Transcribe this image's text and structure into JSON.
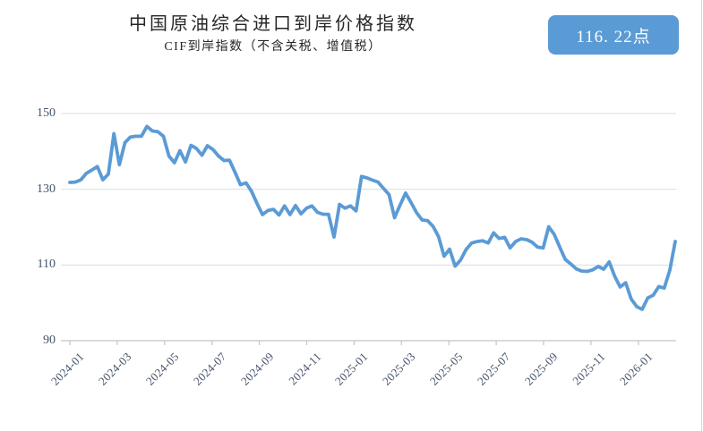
{
  "header": {
    "title": "中国原油综合进口到岸价格指数",
    "subtitle": "CIF到岸指数（不含关税、增值税）",
    "badge": "116. 22点"
  },
  "colors": {
    "line": "#5B9BD5",
    "badge_bg": "#5B9BD5",
    "badge_text": "#FFFFFF",
    "axis_label": "#44546A",
    "title": "#262626",
    "gridline": "#D8DEE6",
    "axis_line": "#BFC5CC"
  },
  "chart_data": {
    "type": "line",
    "title": "中国原油综合进口到岸价格指数",
    "subtitle": "CIF到岸指数（不含关税、增值税）",
    "latest_value": 116.22,
    "latest_value_label": "116. 22点",
    "x_frequency": "weekly",
    "x_range": [
      "2024-01",
      "2026-02"
    ],
    "x_tick_labels": [
      "2024-01",
      "2024-03",
      "2024-05",
      "2024-07",
      "2024-09",
      "2024-11",
      "2025-01",
      "2025-03",
      "2025-05",
      "2025-07",
      "2025-09",
      "2025-11",
      "2026-01"
    ],
    "y_ticks": [
      90,
      110,
      130,
      150
    ],
    "ylim": [
      90,
      150
    ],
    "grid": "horizontal",
    "legend": "none",
    "values": [
      131.8,
      131.9,
      132.5,
      134.2,
      135.1,
      136.0,
      132.5,
      134.0,
      144.7,
      136.5,
      142.3,
      143.8,
      144.0,
      144.0,
      146.6,
      145.4,
      145.2,
      144.0,
      138.8,
      137.0,
      140.2,
      137.2,
      141.6,
      140.8,
      139.0,
      141.5,
      140.5,
      138.8,
      137.6,
      137.7,
      134.5,
      131.2,
      131.7,
      129.5,
      126.3,
      123.3,
      124.4,
      124.7,
      123.2,
      125.6,
      123.3,
      125.7,
      123.5,
      125.0,
      125.6,
      123.9,
      123.4,
      123.4,
      117.4,
      126.0,
      125.0,
      125.6,
      124.3,
      133.4,
      133.0,
      132.4,
      131.9,
      130.2,
      128.6,
      122.5,
      125.8,
      129.0,
      126.5,
      123.8,
      121.9,
      121.7,
      120.2,
      117.5,
      112.3,
      114.2,
      109.7,
      111.3,
      114.1,
      115.8,
      116.2,
      116.4,
      115.8,
      118.5,
      117.0,
      117.3,
      114.5,
      116.2,
      116.9,
      116.7,
      116.0,
      114.7,
      114.5,
      120.1,
      118.1,
      114.8,
      111.5,
      110.3,
      109.0,
      108.4,
      108.3,
      108.7,
      109.6,
      108.9,
      110.8,
      107.0,
      104.2,
      105.3,
      101.0,
      99.0,
      98.3,
      101.3,
      102.0,
      104.3,
      103.9,
      108.6,
      116.22
    ]
  }
}
